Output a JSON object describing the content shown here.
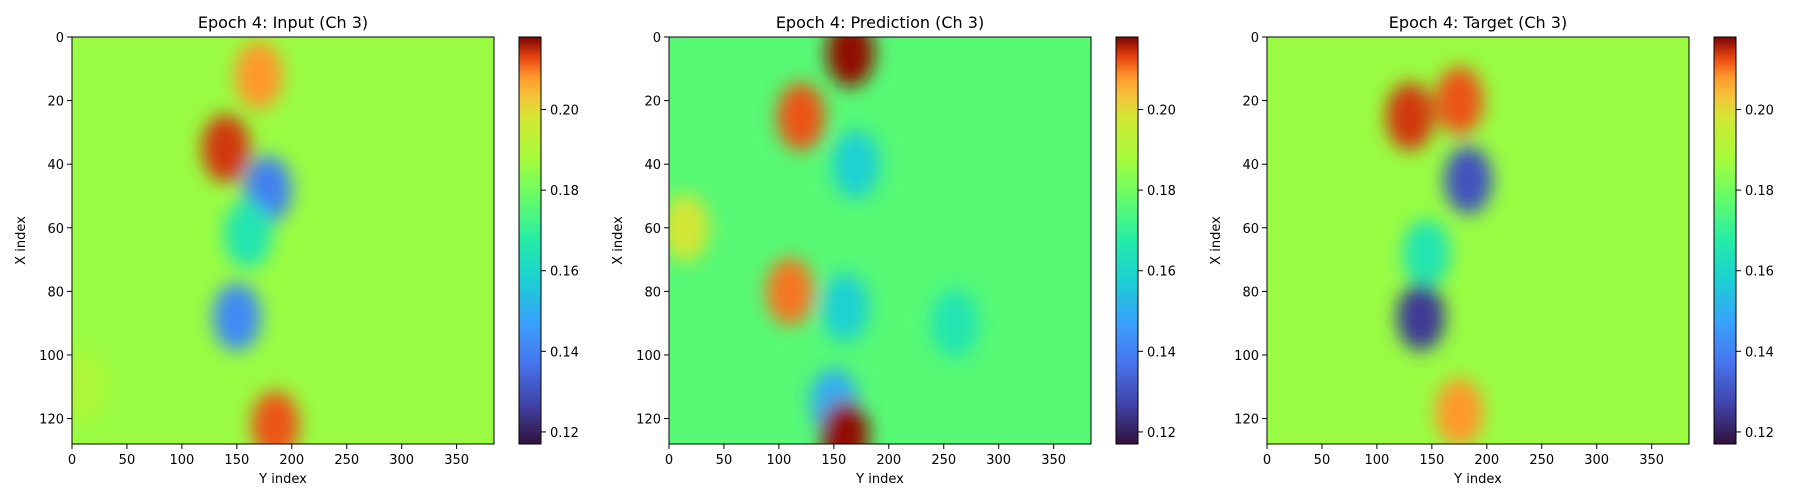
{
  "colormap": "turbo",
  "chart_data": [
    {
      "type": "heatmap",
      "title": "Epoch 4: Input (Ch 3)",
      "xlabel": "Y index",
      "ylabel": "X index",
      "x_range": [
        0,
        384
      ],
      "y_range": [
        0,
        128
      ],
      "y_inverted": true,
      "x_ticks": [
        "0",
        "50",
        "100",
        "150",
        "200",
        "250",
        "300",
        "350"
      ],
      "y_ticks": [
        "0",
        "20",
        "40",
        "60",
        "80",
        "100",
        "120"
      ],
      "colorbar": {
        "range": [
          0.117,
          0.218
        ],
        "ticks": [
          "0.12",
          "0.14",
          "0.16",
          "0.18",
          "0.20"
        ]
      },
      "background_value": 0.186,
      "features": [
        {
          "x": 10,
          "y": 110,
          "value": 0.19
        },
        {
          "x": 140,
          "y": 35,
          "value": 0.214
        },
        {
          "x": 170,
          "y": 12,
          "value": 0.208
        },
        {
          "x": 178,
          "y": 48,
          "value": 0.14
        },
        {
          "x": 160,
          "y": 62,
          "value": 0.165
        },
        {
          "x": 150,
          "y": 88,
          "value": 0.142
        },
        {
          "x": 185,
          "y": 122,
          "value": 0.212
        }
      ]
    },
    {
      "type": "heatmap",
      "title": "Epoch 4: Prediction (Ch 3)",
      "xlabel": "Y index",
      "ylabel": "X index",
      "x_range": [
        0,
        384
      ],
      "y_range": [
        0,
        128
      ],
      "y_inverted": true,
      "x_ticks": [
        "0",
        "50",
        "100",
        "150",
        "200",
        "250",
        "300",
        "350"
      ],
      "y_ticks": [
        "0",
        "20",
        "40",
        "60",
        "80",
        "100",
        "120"
      ],
      "colorbar": {
        "range": [
          0.117,
          0.218
        ],
        "ticks": [
          "0.12",
          "0.14",
          "0.16",
          "0.18",
          "0.20"
        ]
      },
      "background_value": 0.176,
      "features": [
        {
          "x": 15,
          "y": 60,
          "value": 0.198
        },
        {
          "x": 120,
          "y": 25,
          "value": 0.212
        },
        {
          "x": 165,
          "y": 5,
          "value": 0.217
        },
        {
          "x": 170,
          "y": 40,
          "value": 0.158
        },
        {
          "x": 110,
          "y": 80,
          "value": 0.21
        },
        {
          "x": 160,
          "y": 85,
          "value": 0.158
        },
        {
          "x": 150,
          "y": 115,
          "value": 0.15
        },
        {
          "x": 160,
          "y": 125,
          "value": 0.217
        },
        {
          "x": 260,
          "y": 90,
          "value": 0.165
        }
      ]
    },
    {
      "type": "heatmap",
      "title": "Epoch 4: Target (Ch 3)",
      "xlabel": "Y index",
      "ylabel": "X index",
      "x_range": [
        0,
        384
      ],
      "y_range": [
        0,
        128
      ],
      "y_inverted": true,
      "x_ticks": [
        "0",
        "50",
        "100",
        "150",
        "200",
        "250",
        "300",
        "350"
      ],
      "y_ticks": [
        "0",
        "20",
        "40",
        "60",
        "80",
        "100",
        "120"
      ],
      "colorbar": {
        "range": [
          0.117,
          0.218
        ],
        "ticks": [
          "0.12",
          "0.14",
          "0.16",
          "0.18",
          "0.20"
        ]
      },
      "background_value": 0.186,
      "features": [
        {
          "x": 130,
          "y": 25,
          "value": 0.214
        },
        {
          "x": 175,
          "y": 20,
          "value": 0.212
        },
        {
          "x": 183,
          "y": 45,
          "value": 0.13
        },
        {
          "x": 145,
          "y": 68,
          "value": 0.165
        },
        {
          "x": 140,
          "y": 88,
          "value": 0.125
        },
        {
          "x": 175,
          "y": 118,
          "value": 0.208
        }
      ]
    }
  ]
}
